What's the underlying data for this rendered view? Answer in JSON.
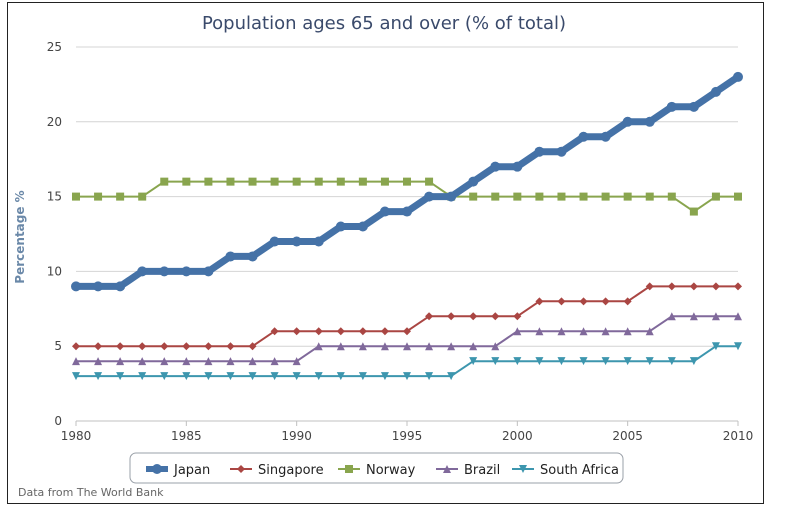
{
  "chart_data": {
    "type": "line",
    "title": "Population ages 65 and over (% of total)",
    "xlabel": "",
    "ylabel": "Percentage %",
    "credit": "Data from The World Bank",
    "xlim": [
      1980,
      2010
    ],
    "ylim": [
      0,
      25
    ],
    "xticks": [
      "1980",
      "1985",
      "1990",
      "1995",
      "2000",
      "2005",
      "2010"
    ],
    "yticks": [
      "0",
      "5",
      "10",
      "15",
      "20",
      "25"
    ],
    "grid": "horizontal",
    "legend": "bottom",
    "x": [
      1980,
      1981,
      1982,
      1983,
      1984,
      1985,
      1986,
      1987,
      1988,
      1989,
      1990,
      1991,
      1992,
      1993,
      1994,
      1995,
      1996,
      1997,
      1998,
      1999,
      2000,
      2001,
      2002,
      2003,
      2004,
      2005,
      2006,
      2007,
      2008,
      2009,
      2010
    ],
    "series": [
      {
        "name": "Japan",
        "color": "#4572a7",
        "marker": "circle",
        "width": 7,
        "values": [
          9,
          9,
          9,
          10,
          10,
          10,
          10,
          11,
          11,
          12,
          12,
          12,
          13,
          13,
          14,
          14,
          15,
          15,
          16,
          17,
          17,
          18,
          18,
          19,
          19,
          20,
          20,
          21,
          21,
          22,
          23
        ]
      },
      {
        "name": "Singapore",
        "color": "#aa4643",
        "marker": "diamond",
        "width": 2,
        "values": [
          5,
          5,
          5,
          5,
          5,
          5,
          5,
          5,
          5,
          6,
          6,
          6,
          6,
          6,
          6,
          6,
          7,
          7,
          7,
          7,
          7,
          8,
          8,
          8,
          8,
          8,
          9,
          9,
          9,
          9,
          9
        ]
      },
      {
        "name": "Norway",
        "color": "#89a54e",
        "marker": "square",
        "width": 2,
        "values": [
          15,
          15,
          15,
          15,
          16,
          16,
          16,
          16,
          16,
          16,
          16,
          16,
          16,
          16,
          16,
          16,
          16,
          15,
          15,
          15,
          15,
          15,
          15,
          15,
          15,
          15,
          15,
          15,
          14,
          15,
          15
        ]
      },
      {
        "name": "Brazil",
        "color": "#80699b",
        "marker": "triangle",
        "width": 2,
        "values": [
          4,
          4,
          4,
          4,
          4,
          4,
          4,
          4,
          4,
          4,
          4,
          5,
          5,
          5,
          5,
          5,
          5,
          5,
          5,
          5,
          6,
          6,
          6,
          6,
          6,
          6,
          6,
          7,
          7,
          7,
          7
        ]
      },
      {
        "name": "South Africa",
        "color": "#3d96ae",
        "marker": "triangle-down",
        "width": 2,
        "values": [
          3,
          3,
          3,
          3,
          3,
          3,
          3,
          3,
          3,
          3,
          3,
          3,
          3,
          3,
          3,
          3,
          3,
          3,
          4,
          4,
          4,
          4,
          4,
          4,
          4,
          4,
          4,
          4,
          4,
          5,
          5
        ]
      }
    ]
  }
}
